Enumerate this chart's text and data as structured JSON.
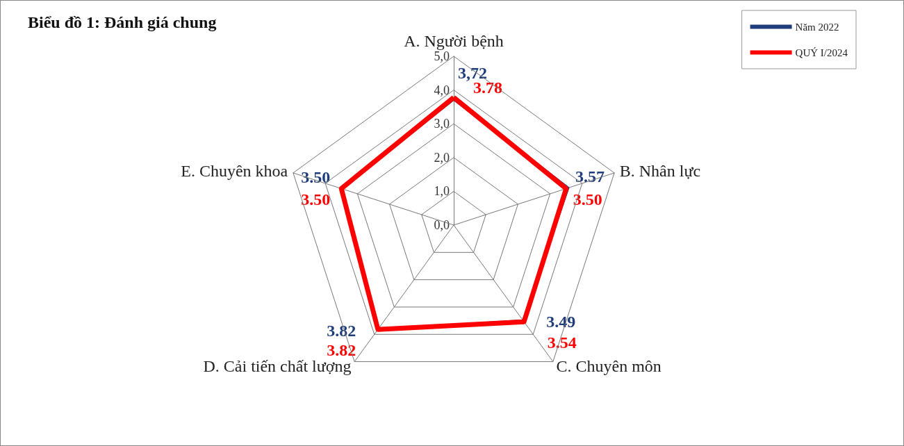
{
  "chart_data": {
    "type": "radar",
    "title": "Biểu đồ 1: Đánh giá chung",
    "categories": [
      "A. Người bệnh",
      "B. Nhân lực",
      "C. Chuyên môn",
      "D. Cải tiến chất lượng",
      "E. Chuyên khoa"
    ],
    "ylim": [
      0,
      5
    ],
    "yticks": [
      {
        "value": 0,
        "label": "0,0"
      },
      {
        "value": 1,
        "label": "1,0"
      },
      {
        "value": 2,
        "label": "2,0"
      },
      {
        "value": 3,
        "label": "3,0"
      },
      {
        "value": 4,
        "label": "4,0"
      },
      {
        "value": 5,
        "label": "5,0"
      }
    ],
    "series": [
      {
        "name": "Năm 2022",
        "color": "#1f3d7a",
        "values": [
          3.72,
          3.57,
          3.49,
          3.82,
          3.5
        ],
        "value_labels": [
          "3,72",
          "3.57",
          "3.49",
          "3.82",
          "3.50"
        ]
      },
      {
        "name": "QUÝ I/2024",
        "color": "#ff0000",
        "values": [
          3.78,
          3.5,
          3.54,
          3.82,
          3.5
        ],
        "value_labels": [
          "3.78",
          "3.50",
          "3.54",
          "3.82",
          "3.50"
        ]
      }
    ],
    "legend": "top right",
    "grid": true
  }
}
